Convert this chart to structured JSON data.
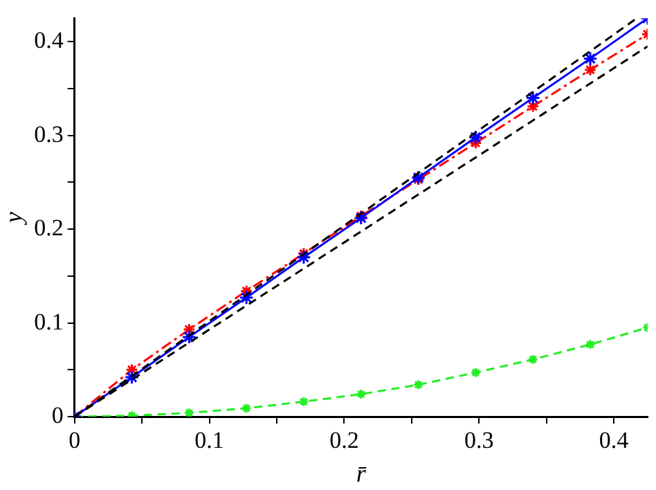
{
  "chart_data": {
    "type": "line",
    "xlabel": "r̄",
    "ylabel": "y",
    "xlim": [
      0,
      0.425
    ],
    "ylim": [
      0,
      0.425
    ],
    "xticks": [
      0,
      {
        "value": 0.05,
        "label": null
      },
      0.1,
      {
        "value": 0.15,
        "label": null
      },
      0.2,
      {
        "value": 0.25,
        "label": null
      },
      0.3,
      {
        "value": 0.35,
        "label": null
      },
      0.4
    ],
    "yticks": [
      0,
      {
        "value": 0.05,
        "label": null
      },
      0.1,
      {
        "value": 0.15,
        "label": null
      },
      0.2,
      {
        "value": 0.25,
        "label": null
      },
      0.3,
      {
        "value": 0.35,
        "label": null
      },
      0.4
    ],
    "grid": false,
    "legend": false,
    "series": [
      {
        "color": "#000000",
        "x": [
          0,
          0.417
        ],
        "values": [
          0,
          0.425
        ],
        "marker": "none",
        "line_style": "dashed"
      },
      {
        "color": "#000000",
        "x": [
          0,
          0.425
        ],
        "values": [
          0,
          0.395
        ],
        "marker": "none",
        "line_style": "dashed"
      },
      {
        "color": "#0000ff",
        "x": [
          0,
          0.0425,
          0.085,
          0.1275,
          0.17,
          0.2125,
          0.255,
          0.2975,
          0.34,
          0.3825,
          0.425
        ],
        "values": [
          0,
          0.042,
          0.085,
          0.127,
          0.17,
          0.212,
          0.255,
          0.298,
          0.34,
          0.382,
          0.425
        ],
        "marker": "cross",
        "line_style": "solid"
      },
      {
        "color": "#ff0000",
        "x": [
          0,
          0.0425,
          0.085,
          0.1275,
          0.17,
          0.2125,
          0.255,
          0.2975,
          0.34,
          0.3825,
          0.425
        ],
        "values": [
          0,
          0.05,
          0.093,
          0.134,
          0.174,
          0.214,
          0.253,
          0.292,
          0.331,
          0.37,
          0.408
        ],
        "marker": "cross",
        "line_style": "dashdot"
      },
      {
        "color": "#22ee22",
        "x": [
          0,
          0.0425,
          0.085,
          0.1275,
          0.17,
          0.2125,
          0.255,
          0.2975,
          0.34,
          0.3825,
          0.425
        ],
        "values": [
          0,
          0.001,
          0.004,
          0.009,
          0.016,
          0.024,
          0.034,
          0.047,
          0.061,
          0.077,
          0.095
        ],
        "marker": "cross",
        "line_style": "dashed"
      }
    ]
  }
}
